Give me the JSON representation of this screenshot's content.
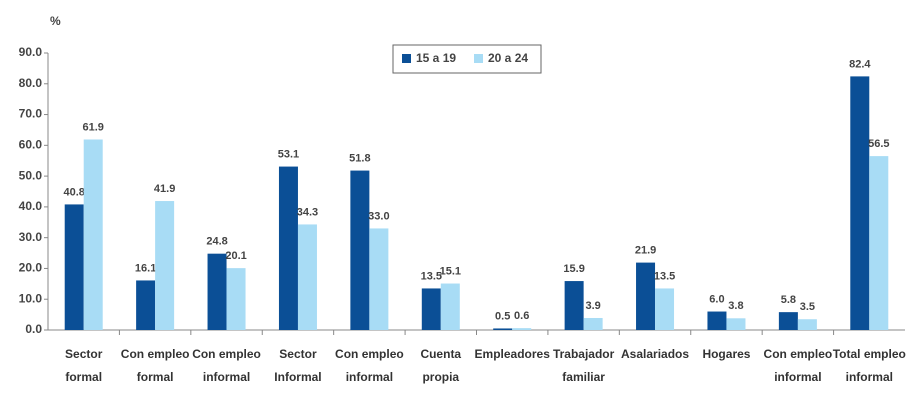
{
  "chart_data": {
    "type": "bar",
    "y_label": "%",
    "categories": [
      "Sector formal",
      "Con empleo formal",
      "Con empleo informal",
      "Sector Informal",
      "Con empleo informal",
      "Cuenta propia",
      "Empleadores",
      "Trabajador familiar",
      "Asalariados",
      "Hogares",
      "Con empleo informal",
      "Total empleo informal"
    ],
    "series": [
      {
        "name": "15 a 19",
        "color": "#0b4f96",
        "values": [
          40.8,
          16.1,
          24.8,
          53.1,
          51.8,
          13.5,
          0.5,
          15.9,
          21.9,
          6.0,
          5.8,
          82.4
        ],
        "value_labels": [
          "40.8",
          "16.1",
          "24.8",
          "53.1",
          "51.8",
          "13.5",
          "0.5",
          "15.9",
          "21.9",
          "6.0",
          "5.8",
          "82.4"
        ]
      },
      {
        "name": "20 a 24",
        "color": "#a8dcf5",
        "values": [
          61.9,
          41.9,
          20.1,
          34.3,
          33.0,
          15.1,
          0.6,
          3.9,
          13.5,
          3.8,
          3.5,
          56.5
        ],
        "value_labels": [
          "61.9",
          "41.9",
          "20.1",
          "34.3",
          "33.0",
          "15.1",
          "0.6",
          "3.9",
          "13.5",
          "3.8",
          "3.5",
          "56.5"
        ]
      }
    ],
    "ylim": [
      0,
      90
    ],
    "yticks": [
      {
        "value": 0,
        "label": "0.0"
      },
      {
        "value": 10,
        "label": "10.0"
      },
      {
        "value": 20,
        "label": "20.0"
      },
      {
        "value": 30,
        "label": "30.0"
      },
      {
        "value": 40,
        "label": "40.0"
      },
      {
        "value": 50,
        "label": "50.0"
      },
      {
        "value": 60,
        "label": "60.0"
      },
      {
        "value": 70,
        "label": "70.0"
      },
      {
        "value": 80,
        "label": "80.0"
      },
      {
        "value": 90,
        "label": "90.0"
      }
    ],
    "legend": "top"
  }
}
